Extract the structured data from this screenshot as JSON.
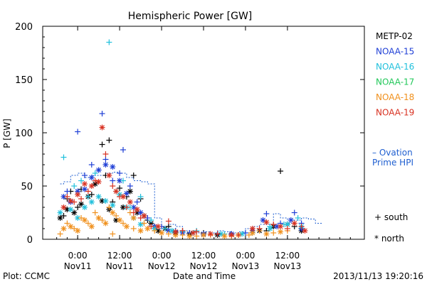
{
  "chart_data": {
    "type": "scatter",
    "title": "Hemispheric Power [GW]",
    "ylabel": "P [GW]",
    "xlabel": "Date and Time",
    "ylim": [
      0,
      200
    ],
    "xlim": [
      -10,
      82
    ],
    "x_unit_note": "hours",
    "yticks": [
      0,
      50,
      100,
      150,
      200
    ],
    "xticks": [
      {
        "x": 0,
        "top": "0:00",
        "bottom": "Nov11"
      },
      {
        "x": 12,
        "top": "12:00",
        "bottom": "Nov11"
      },
      {
        "x": 24,
        "top": "0:00",
        "bottom": "Nov12"
      },
      {
        "x": 36,
        "top": "12:00",
        "bottom": "Nov12"
      },
      {
        "x": 48,
        "top": "0:00",
        "bottom": "Nov13"
      },
      {
        "x": 60,
        "top": "12:00",
        "bottom": "Nov13"
      }
    ],
    "legend_placement": "right",
    "series": [
      {
        "name": "METP-02",
        "color": "#000000",
        "south": [
          [
            -4,
            22
          ],
          [
            -3,
            38
          ],
          [
            -2,
            45
          ],
          [
            0,
            30
          ],
          [
            1,
            47
          ],
          [
            4,
            42
          ],
          [
            7,
            89
          ],
          [
            8,
            60
          ],
          [
            9,
            93
          ],
          [
            10,
            35
          ],
          [
            12,
            48
          ],
          [
            14,
            40
          ],
          [
            16,
            60
          ],
          [
            18,
            38
          ],
          [
            20,
            18
          ],
          [
            22,
            12
          ],
          [
            26,
            12
          ],
          [
            30,
            8
          ],
          [
            36,
            6
          ],
          [
            44,
            5
          ],
          [
            54,
            8
          ],
          [
            58,
            64
          ],
          [
            62,
            12
          ],
          [
            64,
            10
          ]
        ],
        "north": [
          [
            -5,
            20
          ],
          [
            -3,
            28
          ],
          [
            -1,
            25
          ],
          [
            1,
            33
          ],
          [
            3,
            40
          ],
          [
            5,
            52
          ],
          [
            7,
            36
          ],
          [
            9,
            28
          ],
          [
            11,
            18
          ],
          [
            13,
            30
          ],
          [
            15,
            45
          ],
          [
            17,
            25
          ],
          [
            19,
            22
          ],
          [
            21,
            15
          ],
          [
            23,
            8
          ],
          [
            25,
            10
          ],
          [
            28,
            6
          ],
          [
            32,
            5
          ],
          [
            40,
            4
          ],
          [
            52,
            8
          ],
          [
            56,
            12
          ],
          [
            60,
            14
          ],
          [
            64,
            8
          ]
        ]
      },
      {
        "name": "NOAA-15",
        "color": "#1f3fd6",
        "south": [
          [
            -3,
            45
          ],
          [
            0,
            101
          ],
          [
            2,
            60
          ],
          [
            4,
            70
          ],
          [
            6,
            65
          ],
          [
            7,
            118
          ],
          [
            8,
            75
          ],
          [
            10,
            55
          ],
          [
            12,
            62
          ],
          [
            13,
            84
          ],
          [
            15,
            50
          ],
          [
            17,
            35
          ],
          [
            20,
            20
          ],
          [
            24,
            12
          ],
          [
            28,
            8
          ],
          [
            32,
            6
          ],
          [
            40,
            5
          ],
          [
            48,
            6
          ],
          [
            54,
            24
          ],
          [
            58,
            15
          ],
          [
            62,
            25
          ],
          [
            64,
            15
          ]
        ],
        "north": [
          [
            -4,
            40
          ],
          [
            -2,
            35
          ],
          [
            0,
            45
          ],
          [
            2,
            47
          ],
          [
            4,
            58
          ],
          [
            6,
            65
          ],
          [
            8,
            70
          ],
          [
            10,
            68
          ],
          [
            12,
            55
          ],
          [
            14,
            43
          ],
          [
            16,
            30
          ],
          [
            18,
            25
          ],
          [
            22,
            12
          ],
          [
            26,
            8
          ],
          [
            30,
            6
          ],
          [
            36,
            5
          ],
          [
            44,
            5
          ],
          [
            50,
            8
          ],
          [
            53,
            18
          ],
          [
            57,
            12
          ],
          [
            61,
            18
          ],
          [
            64,
            10
          ]
        ]
      },
      {
        "name": "NOAA-16",
        "color": "#20c0dc",
        "south": [
          [
            -4,
            77
          ],
          [
            -1,
            50
          ],
          [
            1,
            55
          ],
          [
            3,
            40
          ],
          [
            5,
            62
          ],
          [
            9,
            185
          ],
          [
            11,
            45
          ],
          [
            13,
            55
          ],
          [
            15,
            30
          ],
          [
            18,
            40
          ],
          [
            21,
            18
          ],
          [
            25,
            10
          ],
          [
            30,
            7
          ],
          [
            34,
            8
          ],
          [
            42,
            5
          ],
          [
            50,
            6
          ],
          [
            55,
            12
          ],
          [
            59,
            14
          ],
          [
            63,
            20
          ]
        ],
        "north": [
          [
            -5,
            25
          ],
          [
            -2,
            28
          ],
          [
            0,
            20
          ],
          [
            2,
            30
          ],
          [
            4,
            35
          ],
          [
            6,
            40
          ],
          [
            8,
            36
          ],
          [
            10,
            32
          ],
          [
            12,
            42
          ],
          [
            14,
            30
          ],
          [
            16,
            20
          ],
          [
            18,
            14
          ],
          [
            22,
            10
          ],
          [
            27,
            8
          ],
          [
            33,
            6
          ],
          [
            41,
            5
          ],
          [
            47,
            5
          ],
          [
            55,
            10
          ],
          [
            60,
            14
          ],
          [
            64,
            12
          ]
        ]
      },
      {
        "name": "NOAA-17",
        "color": "#22c85a",
        "south": [],
        "north": []
      },
      {
        "name": "NOAA-18",
        "color": "#f0901c",
        "south": [
          [
            -5,
            5
          ],
          [
            -3,
            15
          ],
          [
            -1,
            10
          ],
          [
            1,
            20
          ],
          [
            3,
            15
          ],
          [
            5,
            25
          ],
          [
            7,
            18
          ],
          [
            9,
            30
          ],
          [
            10,
            5
          ],
          [
            11,
            22
          ],
          [
            13,
            15
          ],
          [
            15,
            25
          ],
          [
            16,
            10
          ],
          [
            19,
            15
          ],
          [
            22,
            8
          ],
          [
            26,
            5
          ],
          [
            30,
            4
          ],
          [
            34,
            3
          ],
          [
            38,
            4
          ],
          [
            44,
            3
          ],
          [
            49,
            4
          ],
          [
            52,
            8
          ],
          [
            56,
            6
          ],
          [
            60,
            8
          ]
        ],
        "north": [
          [
            -4,
            10
          ],
          [
            -2,
            12
          ],
          [
            0,
            8
          ],
          [
            2,
            18
          ],
          [
            4,
            12
          ],
          [
            6,
            20
          ],
          [
            8,
            15
          ],
          [
            10,
            25
          ],
          [
            12,
            18
          ],
          [
            14,
            12
          ],
          [
            16,
            20
          ],
          [
            18,
            8
          ],
          [
            20,
            10
          ],
          [
            24,
            6
          ],
          [
            28,
            4
          ],
          [
            32,
            3
          ],
          [
            36,
            4
          ],
          [
            42,
            3
          ],
          [
            46,
            4
          ],
          [
            50,
            6
          ],
          [
            54,
            5
          ],
          [
            58,
            7
          ]
        ]
      },
      {
        "name": "NOAA-19",
        "color": "#d83020",
        "south": [
          [
            -3,
            40
          ],
          [
            -1,
            35
          ],
          [
            1,
            38
          ],
          [
            3,
            45
          ],
          [
            5,
            55
          ],
          [
            8,
            80
          ],
          [
            10,
            50
          ],
          [
            12,
            40
          ],
          [
            14,
            30
          ],
          [
            16,
            25
          ],
          [
            18,
            20
          ],
          [
            21,
            12
          ],
          [
            26,
            17
          ],
          [
            30,
            8
          ],
          [
            34,
            7
          ],
          [
            40,
            5
          ],
          [
            46,
            4
          ],
          [
            52,
            10
          ],
          [
            56,
            14
          ],
          [
            60,
            10
          ],
          [
            64,
            12
          ]
        ],
        "north": [
          [
            -4,
            30
          ],
          [
            -2,
            36
          ],
          [
            0,
            42
          ],
          [
            2,
            52
          ],
          [
            4,
            50
          ],
          [
            6,
            54
          ],
          [
            7,
            105
          ],
          [
            9,
            60
          ],
          [
            11,
            45
          ],
          [
            13,
            40
          ],
          [
            15,
            35
          ],
          [
            17,
            28
          ],
          [
            19,
            22
          ],
          [
            23,
            12
          ],
          [
            28,
            7
          ],
          [
            33,
            6
          ],
          [
            38,
            5
          ],
          [
            44,
            4
          ],
          [
            50,
            10
          ],
          [
            54,
            16
          ],
          [
            58,
            12
          ],
          [
            62,
            15
          ],
          [
            65,
            8
          ]
        ]
      }
    ],
    "ovation": {
      "name": "– Ovation Prime HPI",
      "label_line1": "– Ovation",
      "label_line2": "Prime HPI",
      "color": "#1f5fd0",
      "x": [
        -5,
        -4,
        -2,
        0,
        2,
        4,
        6,
        8,
        10,
        12,
        14,
        16,
        18,
        20,
        22,
        24,
        26,
        28,
        30,
        32,
        34,
        36,
        38,
        40,
        42,
        44,
        46,
        48,
        50,
        52,
        54,
        56,
        58,
        60,
        62,
        64,
        66,
        68
      ],
      "y": [
        52,
        54,
        60,
        62,
        58,
        60,
        60,
        62,
        63,
        62,
        58,
        55,
        54,
        52,
        20,
        10,
        14,
        12,
        8,
        7,
        6,
        7,
        6,
        8,
        7,
        6,
        7,
        10,
        12,
        14,
        14,
        24,
        20,
        15,
        18,
        20,
        19,
        15
      ]
    },
    "marker_legend": [
      {
        "symbol": "+",
        "label": "south"
      },
      {
        "symbol": "*",
        "label": "north"
      }
    ]
  },
  "footer": {
    "plot_credit": "Plot: CCMC",
    "timestamp": "2013/11/13 19:20:16"
  }
}
